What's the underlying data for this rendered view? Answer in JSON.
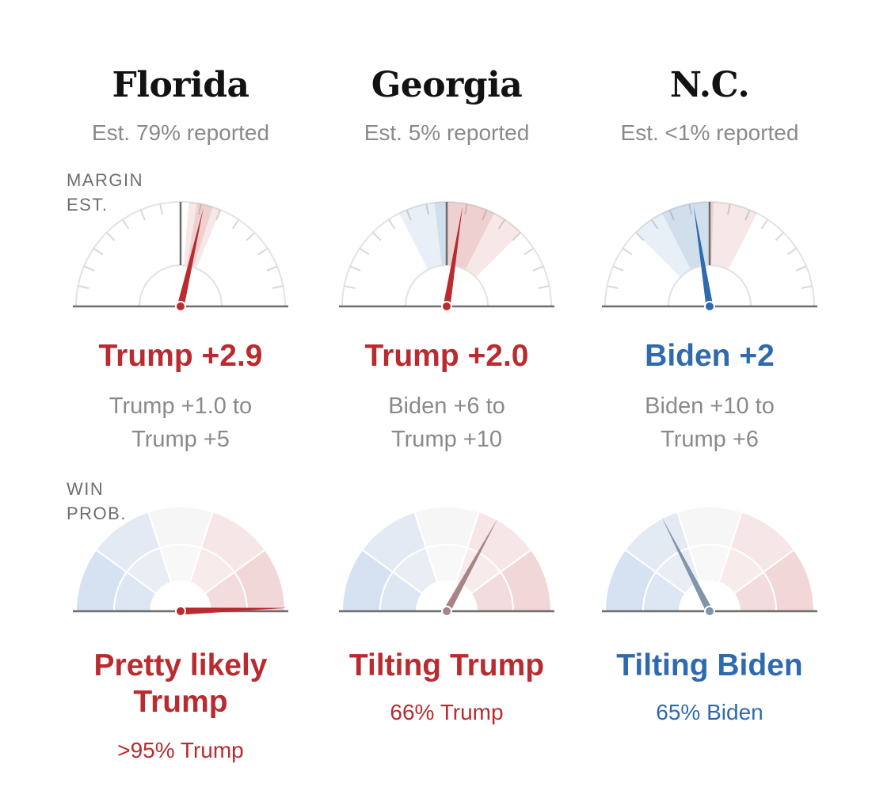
{
  "labels": {
    "margin_line1": "MARGIN",
    "margin_line2": "EST.",
    "winprob_line1": "WIN",
    "winprob_line2": "PROB."
  },
  "colors": {
    "trump_red": "#b92b2f",
    "biden_blue": "#2f6aad",
    "text_gray": "#8a8a8a",
    "axis_gray": "#6e6e6e"
  },
  "states": [
    {
      "name": "Florida",
      "reported": "Est. 79% reported",
      "margin_text": "Trump +2.9",
      "margin_party": "trump",
      "range_line1": "Trump +1.0 to",
      "range_line2": "Trump +5",
      "prob_text_line1": "Pretty likely",
      "prob_text_line2": "Trump",
      "prob_party": "trump",
      "prob_label": ">95% Trump"
    },
    {
      "name": "Georgia",
      "reported": "Est. 5% reported",
      "margin_text": "Trump +2.0",
      "margin_party": "trump",
      "range_line1": "Biden +6 to",
      "range_line2": "Trump +10",
      "prob_text_line1": "Tilting Trump",
      "prob_text_line2": "",
      "prob_party": "trump",
      "prob_label": "66% Trump"
    },
    {
      "name": "N.C.",
      "reported": "Est. <1% reported",
      "margin_text": "Biden +2",
      "margin_party": "biden",
      "range_line1": "Biden +10 to",
      "range_line2": "Trump +6",
      "prob_text_line1": "Tilting Biden",
      "prob_text_line2": "",
      "prob_party": "biden",
      "prob_label": "65% Biden"
    }
  ],
  "chart_data": [
    {
      "type": "gauge",
      "title": "Margin estimate",
      "scale_range": [
        -20,
        20
      ],
      "unit": "points (positive = Trump, negative = Biden)",
      "gauges": [
        {
          "state": "Florida",
          "estimate": 2.9,
          "band_low": 1.0,
          "band_high": 5.0,
          "inner_low": 2.0,
          "inner_high": 4.0,
          "current": 0
        },
        {
          "state": "Georgia",
          "estimate": 2.0,
          "band_low": -6.0,
          "band_high": 10.0,
          "inner_low": -1.5,
          "inner_high": 6.0,
          "current": 0
        },
        {
          "state": "N.C.",
          "estimate": -2.0,
          "band_low": -10.0,
          "band_high": 6.0,
          "inner_low": -6.0,
          "inner_high": 0.5,
          "current": 0
        }
      ]
    },
    {
      "type": "gauge",
      "title": "Win probability",
      "scale_range": [
        0,
        100
      ],
      "unit": "percent chance Trump wins",
      "segments": 5,
      "gauges": [
        {
          "state": "Florida",
          "trump_win_pct": 99
        },
        {
          "state": "Georgia",
          "trump_win_pct": 66
        },
        {
          "state": "N.C.",
          "trump_win_pct": 35
        }
      ]
    }
  ]
}
